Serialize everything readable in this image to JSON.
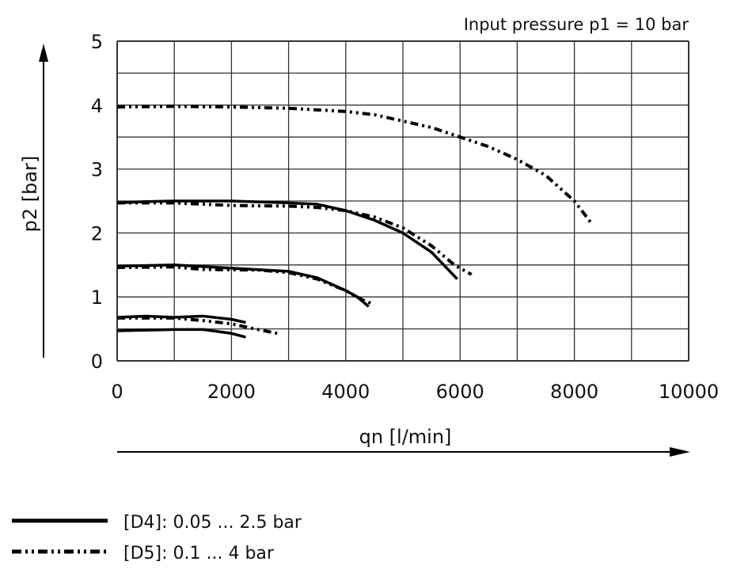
{
  "chart_data": {
    "type": "line",
    "title": "",
    "annotation": "Input pressure p1 = 10 bar",
    "xlabel": "qn [l/min]",
    "ylabel": "p2 [bar]",
    "xlim": [
      0,
      10000
    ],
    "ylim": [
      0,
      5
    ],
    "x_ticks": [
      "0",
      "2000",
      "4000",
      "6000",
      "8000",
      "10000"
    ],
    "y_ticks": [
      "0",
      "1",
      "2",
      "3",
      "4",
      "5"
    ],
    "grid": true,
    "legend_placement": "bottom-left",
    "legend": [
      {
        "label": "[D4]: 0.05 ... 2.5 bar",
        "style": "solid"
      },
      {
        "label": "[D5]: 0.1 ... 4 bar",
        "style": "dash-dot-dot"
      }
    ],
    "series": [
      {
        "legend": 0,
        "points": [
          [
            0,
            2.47
          ],
          [
            500,
            2.49
          ],
          [
            1000,
            2.5
          ],
          [
            2000,
            2.5
          ],
          [
            3000,
            2.47
          ],
          [
            3500,
            2.45
          ],
          [
            4000,
            2.35
          ],
          [
            4500,
            2.2
          ],
          [
            5000,
            2.0
          ],
          [
            5500,
            1.7
          ],
          [
            5950,
            1.28
          ]
        ]
      },
      {
        "legend": 1,
        "points": [
          [
            0,
            2.47
          ],
          [
            1000,
            2.47
          ],
          [
            2000,
            2.43
          ],
          [
            3000,
            2.42
          ],
          [
            3500,
            2.4
          ],
          [
            4000,
            2.35
          ],
          [
            4500,
            2.25
          ],
          [
            5000,
            2.08
          ],
          [
            5500,
            1.8
          ],
          [
            5900,
            1.5
          ],
          [
            6200,
            1.35
          ]
        ]
      },
      {
        "legend": 0,
        "points": [
          [
            0,
            1.48
          ],
          [
            1000,
            1.5
          ],
          [
            2000,
            1.45
          ],
          [
            3000,
            1.4
          ],
          [
            3500,
            1.3
          ],
          [
            4000,
            1.1
          ],
          [
            4200,
            1.0
          ],
          [
            4400,
            0.85
          ]
        ]
      },
      {
        "legend": 1,
        "points": [
          [
            0,
            1.46
          ],
          [
            1000,
            1.47
          ],
          [
            1500,
            1.43
          ],
          [
            2500,
            1.42
          ],
          [
            3000,
            1.38
          ],
          [
            3500,
            1.28
          ],
          [
            4000,
            1.1
          ],
          [
            4300,
            0.95
          ],
          [
            4500,
            0.88
          ]
        ]
      },
      {
        "legend": 0,
        "points": [
          [
            0,
            0.68
          ],
          [
            500,
            0.7
          ],
          [
            1000,
            0.68
          ],
          [
            1500,
            0.7
          ],
          [
            2000,
            0.65
          ],
          [
            2250,
            0.6
          ]
        ]
      },
      {
        "legend": 1,
        "points": [
          [
            0,
            0.67
          ],
          [
            1000,
            0.67
          ],
          [
            1500,
            0.63
          ],
          [
            2000,
            0.58
          ],
          [
            2300,
            0.52
          ],
          [
            2800,
            0.43
          ]
        ]
      },
      {
        "legend": 0,
        "points": [
          [
            0,
            0.47
          ],
          [
            1000,
            0.49
          ],
          [
            1500,
            0.49
          ],
          [
            2000,
            0.43
          ],
          [
            2250,
            0.37
          ]
        ]
      },
      {
        "legend": 1,
        "points": [
          [
            0,
            3.97
          ],
          [
            1000,
            3.98
          ],
          [
            2000,
            3.97
          ],
          [
            3000,
            3.95
          ],
          [
            4000,
            3.9
          ],
          [
            4500,
            3.85
          ],
          [
            5000,
            3.75
          ],
          [
            5500,
            3.65
          ],
          [
            6000,
            3.5
          ],
          [
            6500,
            3.35
          ],
          [
            7000,
            3.15
          ],
          [
            7500,
            2.9
          ],
          [
            8000,
            2.5
          ],
          [
            8300,
            2.15
          ]
        ]
      }
    ],
    "colors": {
      "line": "#000000",
      "grid": "#000000"
    }
  }
}
